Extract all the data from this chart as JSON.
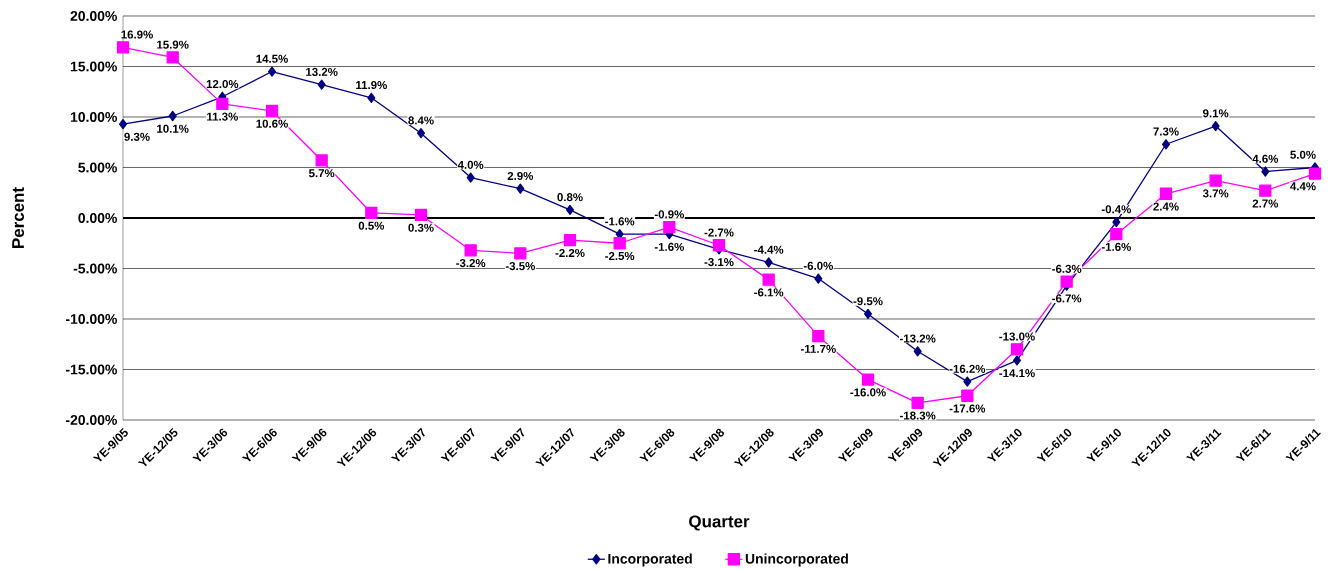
{
  "chart_data": {
    "type": "line",
    "xlabel": "Quarter",
    "ylabel": "Percent",
    "categories": [
      "YE-9/05",
      "YE-12/05",
      "YE-3/06",
      "YE-6/06",
      "YE-9/06",
      "YE-12/06",
      "YE-3/07",
      "YE-6/07",
      "YE-9/07",
      "YE-12/07",
      "YE-3/08",
      "YE-6/08",
      "YE-9/08",
      "YE-12/08",
      "YE-3/09",
      "YE-6/09",
      "YE-9/09",
      "YE-12/09",
      "YE-3/10",
      "YE-6/10",
      "YE-9/10",
      "YE-12/10",
      "YE-3/11",
      "YE-6/11",
      "YE-9/11"
    ],
    "series": [
      {
        "name": "Incorporated",
        "color": "#000080",
        "marker": "diamond",
        "values": [
          9.3,
          10.1,
          12.0,
          14.5,
          13.2,
          11.9,
          8.4,
          4.0,
          2.9,
          0.8,
          -1.6,
          -1.6,
          -3.1,
          -4.4,
          -6.0,
          -9.5,
          -13.2,
          -16.2,
          -14.1,
          -6.7,
          -0.4,
          7.3,
          9.1,
          4.6,
          5.0
        ],
        "value_labels": [
          "9.3%",
          "10.1%",
          "12.0%",
          "14.5%",
          "13.2%",
          "11.9%",
          "8.4%",
          "4.0%",
          "2.9%",
          "0.8%",
          "-1.6%",
          "-1.6%",
          "-3.1%",
          "-4.4%",
          "-6.0%",
          "-9.5%",
          "-13.2%",
          "-16.2%",
          "-14.1%",
          "-6.7%",
          "-0.4%",
          "7.3%",
          "9.1%",
          "4.6%",
          "5.0%"
        ]
      },
      {
        "name": "Unincorporated",
        "color": "#ff00ff",
        "marker": "square",
        "values": [
          16.9,
          15.9,
          11.3,
          10.6,
          5.7,
          0.5,
          0.3,
          -3.2,
          -3.5,
          -2.2,
          -2.5,
          -0.9,
          -2.7,
          -6.1,
          -11.7,
          -16.0,
          -18.3,
          -17.6,
          -13.0,
          -6.3,
          -1.6,
          2.4,
          3.7,
          2.7,
          4.4
        ],
        "value_labels": [
          "16.9%",
          "15.9%",
          "11.3%",
          "10.6%",
          "5.7%",
          "0.5%",
          "0.3%",
          "-3.2%",
          "-3.5%",
          "-2.2%",
          "-2.5%",
          "-0.9%",
          "-2.7%",
          "-6.1%",
          "-11.7%",
          "-16.0%",
          "-18.3%",
          "-17.6%",
          "-13.0%",
          "-6.3%",
          "-1.6%",
          "2.4%",
          "3.7%",
          "2.7%",
          "4.4%"
        ]
      }
    ],
    "ylim": [
      -20,
      20
    ],
    "yticks": [
      {
        "value": -20,
        "label": "-20.00%"
      },
      {
        "value": -15,
        "label": "-15.00%"
      },
      {
        "value": -10,
        "label": "-10.00%"
      },
      {
        "value": -5,
        "label": "-5.00%"
      },
      {
        "value": 0,
        "label": "0.00%"
      },
      {
        "value": 5,
        "label": "5.00%"
      },
      {
        "value": 10,
        "label": "10.00%"
      },
      {
        "value": 15,
        "label": "15.00%"
      },
      {
        "value": 20,
        "label": "20.00%"
      }
    ],
    "grid": "y",
    "legend": "bottom"
  }
}
